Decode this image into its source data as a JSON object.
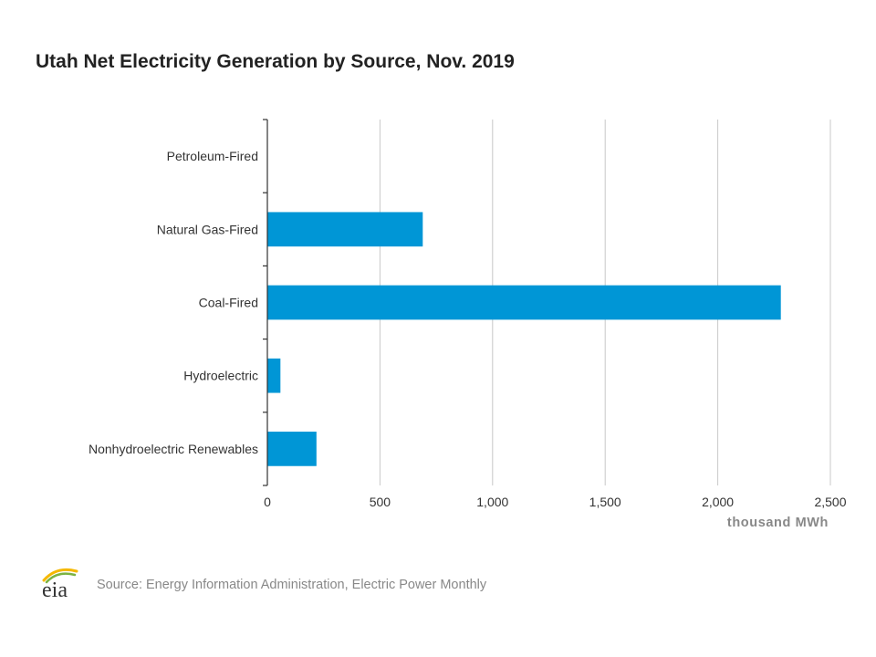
{
  "logo": {
    "text": "eia",
    "colors": [
      "#f5b800",
      "#7cb342",
      "#0096d6"
    ]
  },
  "source": "Source: Energy Information Administration, Electric Power Monthly",
  "chart_data": {
    "type": "bar",
    "orientation": "horizontal",
    "title": "Utah Net Electricity Generation by Source, Nov. 2019",
    "xlabel": "thousand MWh",
    "ylabel": "",
    "categories": [
      "Petroleum-Fired",
      "Natural Gas-Fired",
      "Coal-Fired",
      "Hydroelectric",
      "Nonhydroelectric Renewables"
    ],
    "values": [
      1,
      690,
      2280,
      58,
      218
    ],
    "xlim": [
      0,
      2500
    ],
    "xticks": [
      0,
      500,
      1000,
      1500,
      2000,
      2500
    ],
    "xtick_labels": [
      "0",
      "500",
      "1,000",
      "1,500",
      "2,000",
      "2,500"
    ],
    "grid": "vertical",
    "legend": "none",
    "bar_color": "#0096d6"
  }
}
